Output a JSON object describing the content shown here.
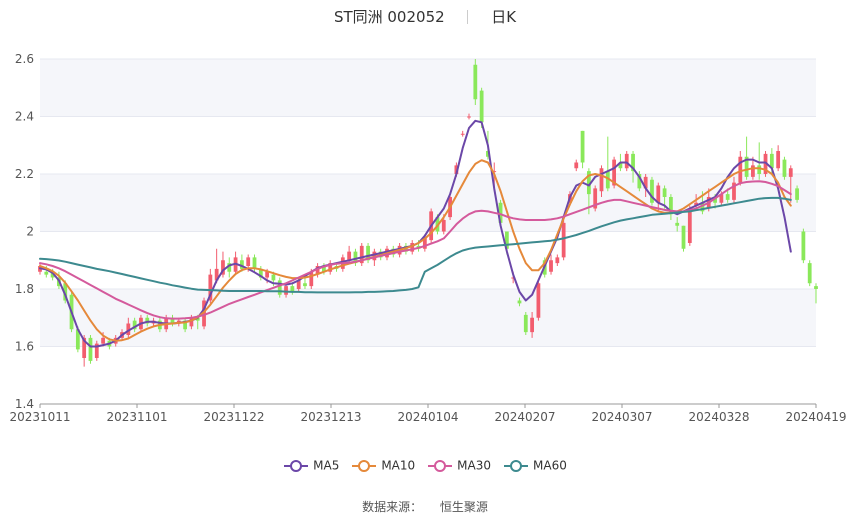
{
  "title": {
    "name": "ST同洲 002052",
    "period": "日K"
  },
  "source": {
    "label": "数据来源：",
    "value": "恒生聚源"
  },
  "chart_data": {
    "type": "candlestick",
    "up_color": "#f25d6e",
    "down_color": "#8ae85a",
    "ylim": [
      1.4,
      2.6
    ],
    "y_ticks": [
      "1.4",
      "1.6",
      "1.8",
      "2",
      "2.2",
      "2.4",
      "2.6"
    ],
    "x_ticks": [
      "20231011",
      "20231101",
      "20231122",
      "20231213",
      "20240104",
      "20240207",
      "20240307",
      "20240328",
      "20240419"
    ],
    "candles": [
      [
        1.86,
        1.88,
        1.89,
        1.85
      ],
      [
        1.86,
        1.85,
        1.88,
        1.84
      ],
      [
        1.86,
        1.84,
        1.87,
        1.83
      ],
      [
        1.84,
        1.81,
        1.86,
        1.8
      ],
      [
        1.82,
        1.76,
        1.83,
        1.75
      ],
      [
        1.78,
        1.66,
        1.79,
        1.65
      ],
      [
        1.66,
        1.59,
        1.67,
        1.58
      ],
      [
        1.56,
        1.63,
        1.64,
        1.53
      ],
      [
        1.63,
        1.55,
        1.64,
        1.54
      ],
      [
        1.56,
        1.61,
        1.62,
        1.55
      ],
      [
        1.61,
        1.63,
        1.65,
        1.6
      ],
      [
        1.62,
        1.6,
        1.63,
        1.59
      ],
      [
        1.61,
        1.63,
        1.64,
        1.6
      ],
      [
        1.63,
        1.65,
        1.66,
        1.62
      ],
      [
        1.64,
        1.68,
        1.7,
        1.63
      ],
      [
        1.69,
        1.66,
        1.7,
        1.65
      ],
      [
        1.66,
        1.7,
        1.71,
        1.65
      ],
      [
        1.7,
        1.68,
        1.71,
        1.67
      ],
      [
        1.68,
        1.69,
        1.7,
        1.67
      ],
      [
        1.69,
        1.66,
        1.7,
        1.65
      ],
      [
        1.66,
        1.7,
        1.71,
        1.65
      ],
      [
        1.7,
        1.68,
        1.71,
        1.67
      ],
      [
        1.68,
        1.69,
        1.7,
        1.67
      ],
      [
        1.69,
        1.66,
        1.7,
        1.65
      ],
      [
        1.67,
        1.7,
        1.71,
        1.66
      ],
      [
        1.7,
        1.69,
        1.71,
        1.66
      ],
      [
        1.67,
        1.76,
        1.77,
        1.66
      ],
      [
        1.76,
        1.85,
        1.87,
        1.75
      ],
      [
        1.83,
        1.87,
        1.94,
        1.82
      ],
      [
        1.85,
        1.9,
        1.93,
        1.84
      ],
      [
        1.89,
        1.86,
        1.91,
        1.84
      ],
      [
        1.86,
        1.91,
        1.93,
        1.85
      ],
      [
        1.9,
        1.87,
        1.92,
        1.86
      ],
      [
        1.88,
        1.91,
        1.92,
        1.86
      ],
      [
        1.91,
        1.87,
        1.92,
        1.86
      ],
      [
        1.87,
        1.84,
        1.88,
        1.83
      ],
      [
        1.84,
        1.86,
        1.87,
        1.82
      ],
      [
        1.85,
        1.83,
        1.86,
        1.81
      ],
      [
        1.83,
        1.78,
        1.84,
        1.77
      ],
      [
        1.78,
        1.81,
        1.82,
        1.77
      ],
      [
        1.81,
        1.79,
        1.82,
        1.78
      ],
      [
        1.8,
        1.83,
        1.84,
        1.79
      ],
      [
        1.82,
        1.81,
        1.84,
        1.8
      ],
      [
        1.81,
        1.86,
        1.87,
        1.8
      ],
      [
        1.85,
        1.88,
        1.89,
        1.84
      ],
      [
        1.88,
        1.86,
        1.89,
        1.85
      ],
      [
        1.86,
        1.89,
        1.9,
        1.85
      ],
      [
        1.88,
        1.87,
        1.89,
        1.86
      ],
      [
        1.87,
        1.91,
        1.92,
        1.86
      ],
      [
        1.9,
        1.93,
        1.95,
        1.89
      ],
      [
        1.93,
        1.89,
        1.94,
        1.88
      ],
      [
        1.89,
        1.95,
        1.96,
        1.88
      ],
      [
        1.95,
        1.9,
        1.96,
        1.89
      ],
      [
        1.9,
        1.93,
        1.94,
        1.88
      ],
      [
        1.93,
        1.91,
        1.94,
        1.9
      ],
      [
        1.91,
        1.94,
        1.95,
        1.9
      ],
      [
        1.94,
        1.92,
        1.95,
        1.91
      ],
      [
        1.92,
        1.95,
        1.96,
        1.91
      ],
      [
        1.95,
        1.93,
        1.96,
        1.92
      ],
      [
        1.93,
        1.96,
        1.97,
        1.92
      ],
      [
        1.95,
        1.94,
        1.97,
        1.93
      ],
      [
        1.94,
        1.98,
        1.99,
        1.93
      ],
      [
        1.97,
        2.07,
        2.08,
        1.96
      ],
      [
        2.05,
        2.0,
        2.06,
        1.99
      ],
      [
        2.0,
        2.04,
        2.06,
        1.99
      ],
      [
        2.05,
        2.12,
        2.13,
        2.04
      ],
      [
        2.2,
        2.23,
        2.24,
        2.19
      ],
      [
        2.34,
        2.34,
        2.35,
        2.33
      ],
      [
        2.4,
        2.4,
        2.41,
        2.39
      ],
      [
        2.58,
        2.46,
        2.6,
        2.44
      ],
      [
        2.49,
        2.38,
        2.5,
        2.36
      ],
      [
        2.28,
        2.26,
        2.35,
        2.25
      ],
      [
        2.21,
        2.21,
        2.24,
        2.14
      ],
      [
        2.1,
        2.03,
        2.11,
        2.02
      ],
      [
        2.0,
        1.94,
        2.0,
        1.92
      ],
      [
        1.84,
        1.84,
        1.86,
        1.82
      ],
      [
        1.76,
        1.75,
        1.77,
        1.74
      ],
      [
        1.71,
        1.65,
        1.72,
        1.64
      ],
      [
        1.65,
        1.7,
        1.72,
        1.63
      ],
      [
        1.7,
        1.82,
        1.83,
        1.69
      ],
      [
        1.9,
        1.85,
        1.91,
        1.84
      ],
      [
        1.86,
        1.9,
        1.92,
        1.85
      ],
      [
        1.89,
        1.91,
        1.92,
        1.88
      ],
      [
        1.91,
        2.03,
        2.04,
        1.9
      ],
      [
        2.1,
        2.13,
        2.14,
        2.09
      ],
      [
        2.22,
        2.24,
        2.25,
        2.21
      ],
      [
        2.35,
        2.24,
        2.35,
        2.22
      ],
      [
        2.21,
        2.13,
        2.22,
        2.06
      ],
      [
        2.08,
        2.15,
        2.16,
        2.07
      ],
      [
        2.14,
        2.22,
        2.23,
        2.12
      ],
      [
        2.21,
        2.15,
        2.33,
        2.14
      ],
      [
        2.16,
        2.25,
        2.26,
        2.15
      ],
      [
        2.24,
        2.22,
        2.27,
        2.21
      ],
      [
        2.22,
        2.27,
        2.28,
        2.21
      ],
      [
        2.27,
        2.21,
        2.28,
        2.17
      ],
      [
        2.2,
        2.15,
        2.21,
        2.14
      ],
      [
        2.15,
        2.19,
        2.2,
        2.12
      ],
      [
        2.18,
        2.1,
        2.19,
        2.09
      ],
      [
        2.1,
        2.16,
        2.17,
        2.07
      ],
      [
        2.15,
        2.12,
        2.16,
        2.08
      ],
      [
        2.12,
        2.06,
        2.13,
        2.04
      ],
      [
        2.03,
        2.02,
        2.05,
        2.0
      ],
      [
        2.02,
        1.94,
        2.02,
        1.93
      ],
      [
        1.96,
        2.08,
        2.09,
        1.95
      ],
      [
        2.09,
        2.1,
        2.13,
        2.08
      ],
      [
        2.1,
        2.07,
        2.14,
        2.06
      ],
      [
        2.08,
        2.12,
        2.15,
        2.07
      ],
      [
        2.12,
        2.1,
        2.13,
        2.08
      ],
      [
        2.1,
        2.13,
        2.14,
        2.09
      ],
      [
        2.13,
        2.11,
        2.15,
        2.1
      ],
      [
        2.11,
        2.17,
        2.19,
        2.1
      ],
      [
        2.17,
        2.26,
        2.28,
        2.16
      ],
      [
        2.26,
        2.19,
        2.33,
        2.18
      ],
      [
        2.19,
        2.23,
        2.26,
        2.18
      ],
      [
        2.23,
        2.2,
        2.31,
        2.18
      ],
      [
        2.2,
        2.27,
        2.28,
        2.19
      ],
      [
        2.27,
        2.22,
        2.29,
        2.2
      ],
      [
        2.22,
        2.28,
        2.3,
        2.21
      ],
      [
        2.25,
        2.19,
        2.26,
        2.18
      ],
      [
        2.19,
        2.22,
        2.23,
        2.1
      ],
      [
        2.15,
        2.11,
        2.16,
        2.1
      ],
      [
        2.0,
        1.9,
        2.01,
        1.89
      ],
      [
        1.89,
        1.82,
        1.9,
        1.81
      ],
      [
        1.81,
        1.8,
        1.82,
        1.75
      ]
    ],
    "series": [
      {
        "name": "MA5",
        "color": "#6b47a8",
        "values": [
          1.872,
          1.868,
          1.856,
          1.83,
          1.78,
          1.72,
          1.66,
          1.62,
          1.6,
          1.6,
          1.605,
          1.61,
          1.62,
          1.64,
          1.655,
          1.668,
          1.68,
          1.686,
          1.686,
          1.682,
          1.68,
          1.68,
          1.682,
          1.686,
          1.69,
          1.7,
          1.73,
          1.78,
          1.83,
          1.865,
          1.882,
          1.888,
          1.88,
          1.87,
          1.858,
          1.845,
          1.83,
          1.82,
          1.818,
          1.815,
          1.82,
          1.83,
          1.845,
          1.86,
          1.872,
          1.88,
          1.885,
          1.89,
          1.895,
          1.9,
          1.905,
          1.91,
          1.915,
          1.92,
          1.925,
          1.93,
          1.935,
          1.94,
          1.945,
          1.95,
          1.96,
          1.985,
          2.02,
          2.05,
          2.08,
          2.13,
          2.2,
          2.29,
          2.36,
          2.385,
          2.38,
          2.3,
          2.15,
          2.02,
          1.93,
          1.85,
          1.79,
          1.76,
          1.78,
          1.83,
          1.88,
          1.93,
          1.98,
          2.05,
          2.12,
          2.16,
          2.17,
          2.16,
          2.19,
          2.2,
          2.21,
          2.22,
          2.24,
          2.24,
          2.22,
          2.19,
          2.15,
          2.12,
          2.1,
          2.09,
          2.07,
          2.06,
          2.07,
          2.08,
          2.09,
          2.1,
          2.11,
          2.12,
          2.15,
          2.19,
          2.22,
          2.24,
          2.25,
          2.25,
          2.24,
          2.24,
          2.22,
          2.15,
          2.05,
          1.93
        ]
      },
      {
        "name": "MA10",
        "color": "#e5893a",
        "values": [
          1.88,
          1.872,
          1.862,
          1.846,
          1.822,
          1.792,
          1.76,
          1.725,
          1.69,
          1.66,
          1.638,
          1.625,
          1.62,
          1.622,
          1.628,
          1.64,
          1.652,
          1.662,
          1.67,
          1.675,
          1.678,
          1.68,
          1.682,
          1.684,
          1.69,
          1.702,
          1.72,
          1.745,
          1.775,
          1.805,
          1.83,
          1.852,
          1.866,
          1.872,
          1.872,
          1.868,
          1.862,
          1.855,
          1.848,
          1.842,
          1.838,
          1.838,
          1.84,
          1.845,
          1.852,
          1.86,
          1.868,
          1.875,
          1.882,
          1.888,
          1.894,
          1.9,
          1.906,
          1.912,
          1.918,
          1.924,
          1.93,
          1.936,
          1.942,
          1.95,
          1.96,
          1.975,
          1.995,
          2.02,
          2.05,
          2.085,
          2.125,
          2.165,
          2.205,
          2.235,
          2.248,
          2.24,
          2.2,
          2.14,
          2.07,
          2.0,
          1.94,
          1.89,
          1.865,
          1.865,
          1.89,
          1.935,
          1.99,
          2.045,
          2.095,
          2.14,
          2.175,
          2.195,
          2.2,
          2.195,
          2.185,
          2.17,
          2.155,
          2.14,
          2.125,
          2.11,
          2.095,
          2.08,
          2.07,
          2.065,
          2.065,
          2.07,
          2.08,
          2.095,
          2.11,
          2.125,
          2.14,
          2.155,
          2.17,
          2.185,
          2.2,
          2.21,
          2.215,
          2.22,
          2.22,
          2.215,
          2.2,
          2.17,
          2.12,
          2.09
        ]
      },
      {
        "name": "MA30",
        "color": "#d45a9c",
        "values": [
          1.89,
          1.886,
          1.88,
          1.872,
          1.862,
          1.85,
          1.838,
          1.826,
          1.814,
          1.802,
          1.79,
          1.778,
          1.766,
          1.756,
          1.746,
          1.736,
          1.726,
          1.716,
          1.708,
          1.702,
          1.698,
          1.697,
          1.697,
          1.698,
          1.7,
          1.704,
          1.71,
          1.718,
          1.728,
          1.738,
          1.748,
          1.756,
          1.764,
          1.772,
          1.78,
          1.788,
          1.796,
          1.804,
          1.812,
          1.82,
          1.83,
          1.84,
          1.85,
          1.86,
          1.87,
          1.878,
          1.884,
          1.888,
          1.89,
          1.892,
          1.895,
          1.9,
          1.905,
          1.91,
          1.915,
          1.92,
          1.925,
          1.93,
          1.934,
          1.938,
          1.943,
          1.95,
          1.958,
          1.966,
          1.976,
          2.0,
          2.025,
          2.045,
          2.06,
          2.07,
          2.072,
          2.07,
          2.065,
          2.06,
          2.052,
          2.046,
          2.042,
          2.04,
          2.04,
          2.04,
          2.04,
          2.042,
          2.046,
          2.052,
          2.06,
          2.068,
          2.076,
          2.084,
          2.092,
          2.1,
          2.106,
          2.11,
          2.11,
          2.105,
          2.1,
          2.095,
          2.09,
          2.085,
          2.08,
          2.075,
          2.072,
          2.07,
          2.07,
          2.074,
          2.08,
          2.09,
          2.1,
          2.115,
          2.13,
          2.145,
          2.158,
          2.168,
          2.172,
          2.174,
          2.175,
          2.172,
          2.166,
          2.158,
          2.144,
          2.13
        ]
      },
      {
        "name": "MA60",
        "color": "#3d8a8f",
        "values": [
          1.905,
          1.904,
          1.902,
          1.899,
          1.895,
          1.89,
          1.885,
          1.88,
          1.875,
          1.87,
          1.866,
          1.862,
          1.857,
          1.852,
          1.847,
          1.842,
          1.837,
          1.832,
          1.827,
          1.822,
          1.818,
          1.813,
          1.809,
          1.805,
          1.801,
          1.798,
          1.797,
          1.796,
          1.795,
          1.794,
          1.793,
          1.793,
          1.793,
          1.793,
          1.793,
          1.793,
          1.792,
          1.792,
          1.792,
          1.791,
          1.79,
          1.79,
          1.789,
          1.789,
          1.788,
          1.788,
          1.788,
          1.788,
          1.788,
          1.788,
          1.789,
          1.789,
          1.79,
          1.79,
          1.791,
          1.792,
          1.793,
          1.795,
          1.797,
          1.8,
          1.806,
          1.86,
          1.872,
          1.884,
          1.898,
          1.912,
          1.924,
          1.934,
          1.94,
          1.944,
          1.946,
          1.948,
          1.95,
          1.952,
          1.954,
          1.956,
          1.958,
          1.96,
          1.962,
          1.964,
          1.966,
          1.968,
          1.972,
          1.976,
          1.982,
          1.988,
          1.995,
          2.002,
          2.01,
          2.018,
          2.025,
          2.032,
          2.038,
          2.042,
          2.046,
          2.05,
          2.054,
          2.058,
          2.06,
          2.062,
          2.064,
          2.066,
          2.068,
          2.07,
          2.074,
          2.078,
          2.082,
          2.086,
          2.09,
          2.094,
          2.098,
          2.102,
          2.106,
          2.11,
          2.114,
          2.116,
          2.117,
          2.117,
          2.114,
          2.11
        ]
      }
    ]
  }
}
